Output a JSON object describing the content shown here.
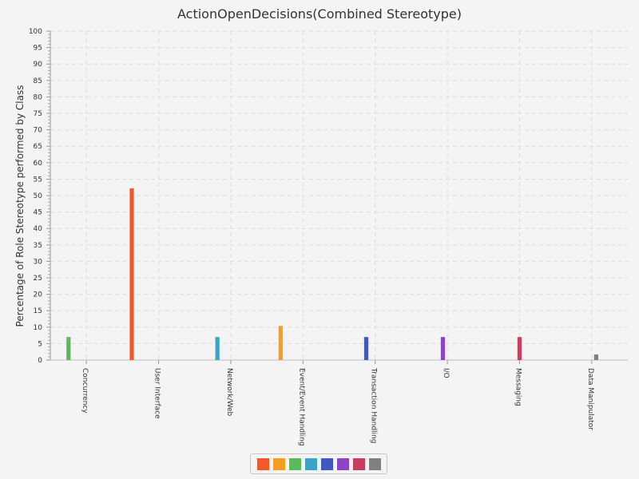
{
  "chart_data": {
    "type": "bar",
    "title": "ActionOpenDecisions(Combined Stereotype)",
    "xlabel": "",
    "ylabel": "Percentage of Role Stereotype performed by Class",
    "ylim": [
      0,
      100
    ],
    "yticks": [
      0,
      5,
      10,
      15,
      20,
      25,
      30,
      35,
      40,
      45,
      50,
      55,
      60,
      65,
      70,
      75,
      80,
      85,
      90,
      95,
      100
    ],
    "grid": true,
    "legend_position": "bottom",
    "categories": [
      "Concurrency",
      "User Interface",
      "Network/Web",
      "Event/Event Handling",
      "Transaction Handling",
      "I/O",
      "Messaging",
      "Data Manipulator"
    ],
    "series": [
      {
        "color": "#f1592a",
        "values": [
          0,
          52.2,
          0,
          0,
          0,
          0,
          0,
          0
        ]
      },
      {
        "color": "#f59f20",
        "values": [
          0,
          0,
          0,
          10.4,
          0,
          0,
          0,
          0
        ]
      },
      {
        "color": "#5cb85c",
        "values": [
          7.0,
          0,
          0,
          0,
          0,
          0,
          0,
          0
        ]
      },
      {
        "color": "#3ba3c5",
        "values": [
          0,
          0,
          7.0,
          0,
          0,
          0,
          0,
          0
        ]
      },
      {
        "color": "#4157c2",
        "values": [
          0,
          0,
          0,
          0,
          7.0,
          0,
          0,
          0
        ]
      },
      {
        "color": "#8e44c9",
        "values": [
          0,
          0,
          0,
          0,
          0,
          7.0,
          0,
          0
        ]
      },
      {
        "color": "#c83e5e",
        "values": [
          0,
          0,
          0,
          0,
          0,
          0,
          7.0,
          0
        ]
      },
      {
        "color": "#808080",
        "values": [
          0,
          0,
          0,
          0,
          0,
          0,
          0,
          1.7
        ]
      }
    ]
  }
}
